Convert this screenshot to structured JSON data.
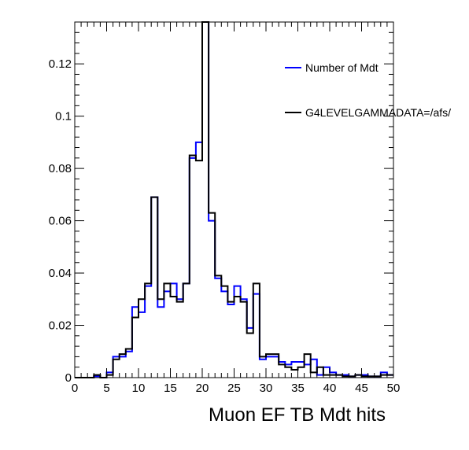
{
  "chart_data": {
    "type": "histogram-step",
    "title": "",
    "xlabel": "Muon EF TB Mdt hits",
    "ylabel": "",
    "xlim": [
      0,
      50
    ],
    "ylim": [
      0,
      0.136
    ],
    "x_ticks": [
      0,
      5,
      10,
      15,
      20,
      25,
      30,
      35,
      40,
      45,
      50
    ],
    "y_ticks": [
      0,
      0.02,
      0.04,
      0.06,
      0.08,
      0.1,
      0.12
    ],
    "y_tick_labels": [
      "0",
      "0.02",
      "0.04",
      "0.06",
      "0.08",
      "0.1",
      "0.12"
    ],
    "bin_width": 1,
    "legend_position": "top-right",
    "series": [
      {
        "name": "Number of Mdt",
        "color": "#0000ff",
        "values": [
          0,
          0,
          0,
          0.0005,
          0,
          0.002,
          0.008,
          0.008,
          0.01,
          0.027,
          0.025,
          0.035,
          0.069,
          0.027,
          0.033,
          0.036,
          0.03,
          0.036,
          0.084,
          0.09,
          0.138,
          0.06,
          0.038,
          0.033,
          0.028,
          0.035,
          0.03,
          0.019,
          0.032,
          0.007,
          0.008,
          0.008,
          0.006,
          0.005,
          0.006,
          0.006,
          0.005,
          0.007,
          0.001,
          0.004,
          0.002,
          0.001,
          0.001,
          0.0005,
          0.001,
          0.001,
          0.0005,
          0.0005,
          0.002,
          0.001
        ]
      },
      {
        "name": "G4LEVELGAMMADATA=/afs/",
        "color": "#000000",
        "values": [
          0,
          0,
          0,
          0.001,
          0,
          0.001,
          0.007,
          0.009,
          0.011,
          0.023,
          0.03,
          0.036,
          0.069,
          0.03,
          0.036,
          0.031,
          0.029,
          0.036,
          0.085,
          0.083,
          0.138,
          0.063,
          0.039,
          0.035,
          0.029,
          0.031,
          0.029,
          0.017,
          0.036,
          0.008,
          0.009,
          0.009,
          0.005,
          0.004,
          0.003,
          0.004,
          0.009,
          0.002,
          0.004,
          0.001,
          0.001,
          0.001,
          0.0005,
          0.0005,
          0.001,
          0.0005,
          0.0005,
          0.0005,
          0.001,
          0.001
        ]
      }
    ]
  }
}
